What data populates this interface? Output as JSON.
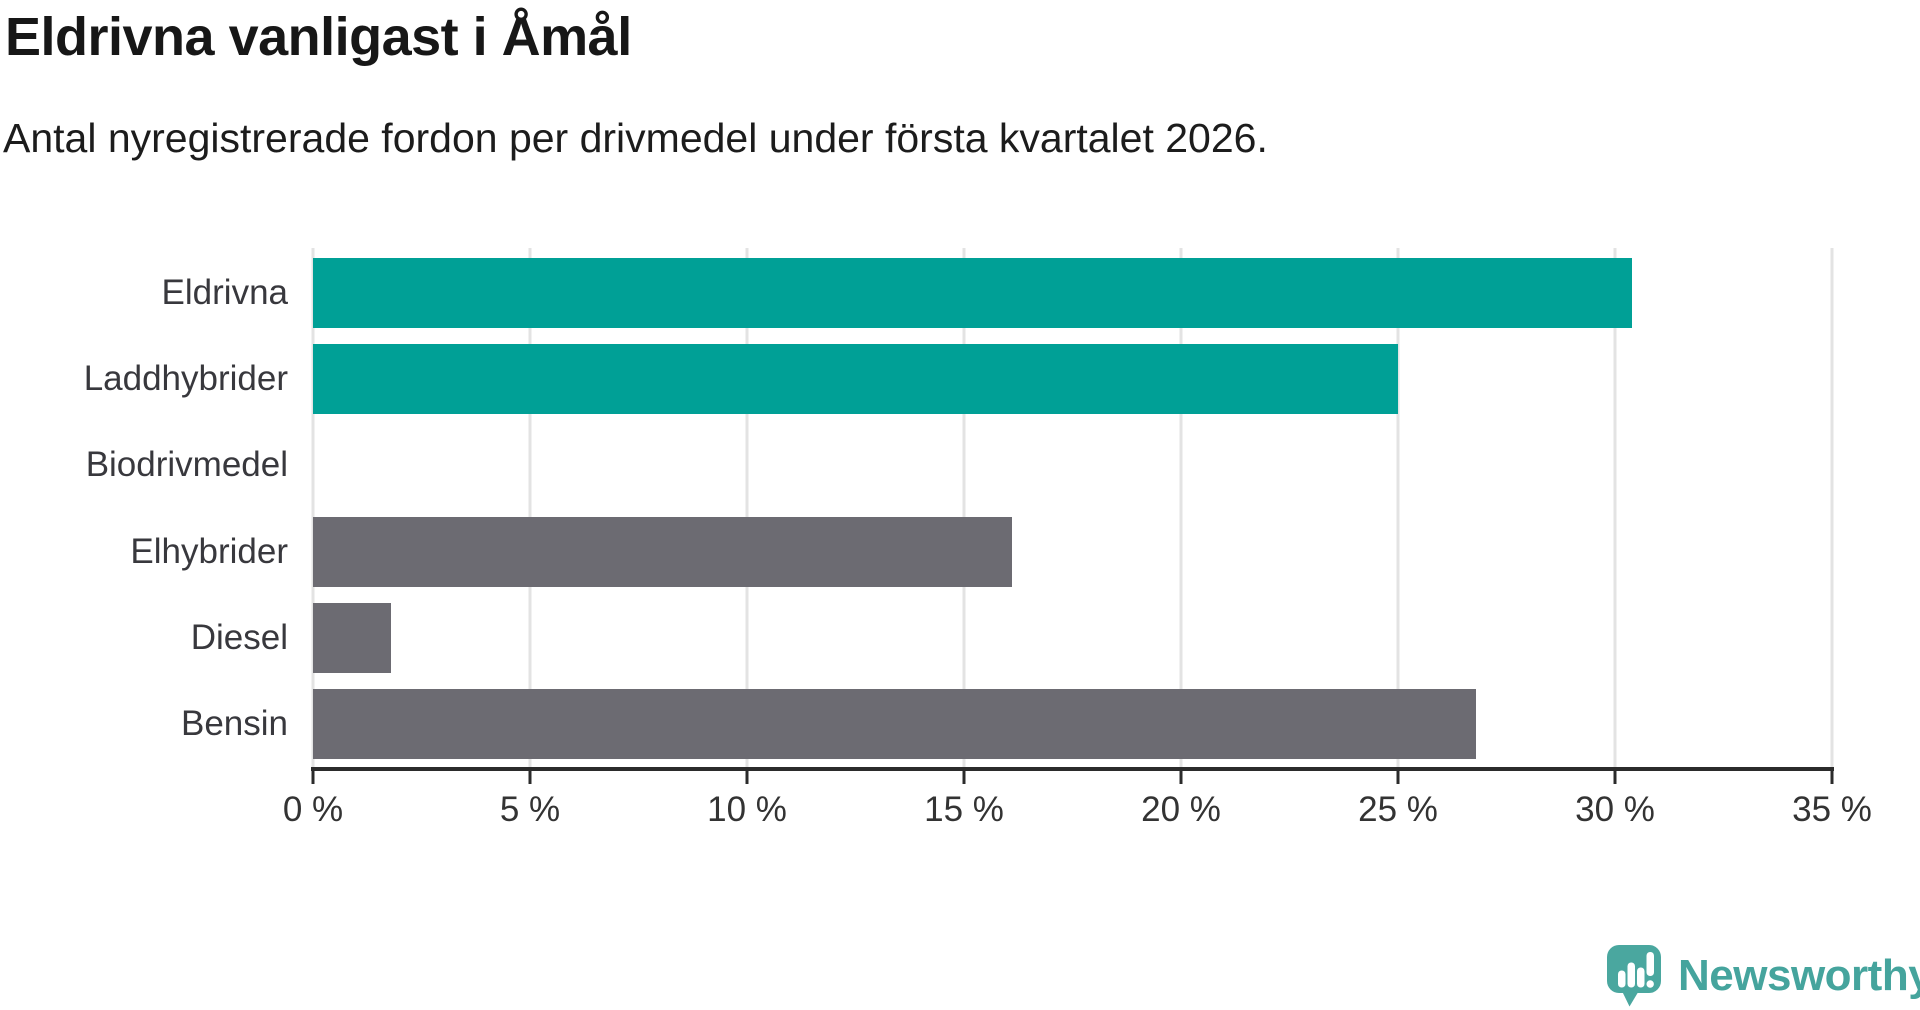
{
  "header": {
    "title": "Eldrivna vanligast i Åmål",
    "subtitle": "Antal nyregistrerade fordon per drivmedel under första kvartalet 2026."
  },
  "chart_data": {
    "type": "bar",
    "orientation": "horizontal",
    "title": "Eldrivna vanligast i Åmål",
    "subtitle": "Antal nyregistrerade fordon per drivmedel under första kvartalet 2026.",
    "categories": [
      "Eldrivna",
      "Laddhybrider",
      "Biodrivmedel",
      "Elhybrider",
      "Diesel",
      "Bensin"
    ],
    "values": [
      30.4,
      25.0,
      0,
      16.1,
      1.8,
      26.8
    ],
    "unit": "%",
    "bar_colors": [
      "#00a096",
      "#00a096",
      "#00a096",
      "#6c6b72",
      "#6c6b72",
      "#6c6b72"
    ],
    "xlabel": "",
    "ylabel": "",
    "xlim": [
      0,
      35
    ],
    "x_tick_values": [
      0,
      5,
      10,
      15,
      20,
      25,
      30,
      35
    ],
    "x_tick_labels": [
      "0 %",
      "5 %",
      "10 %",
      "15 %",
      "20 %",
      "25 %",
      "30 %",
      "35 %"
    ],
    "grid": "vertical-gridlines-on",
    "legend": "none",
    "colors": {
      "electric_highlight": "#00a096",
      "fossil_base": "#6c6b72",
      "gridline": "#e3e3e3",
      "axis": "#2b2b2b",
      "text": "#38383d"
    }
  },
  "footer": {
    "logo_text": "Newsworthy",
    "logo_color": "#45a49d"
  }
}
